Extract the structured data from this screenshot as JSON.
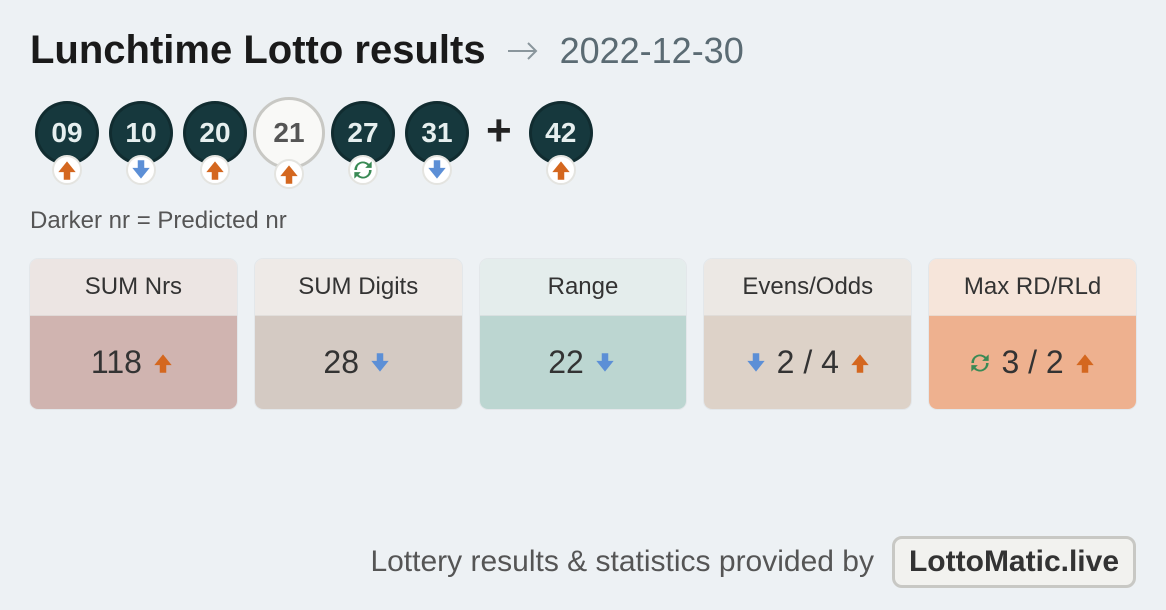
{
  "title": "Lunchtime Lotto results",
  "date": "2022-12-30",
  "legend": "Darker nr = Predicted nr",
  "plus_glyph": "+",
  "colors": {
    "ball_dark_bg": "#16383d",
    "ball_dark_fg": "#e6efef",
    "ball_light_bg": "#f9f9f7",
    "ball_light_fg": "#555555",
    "ball_light_border": "#c8c8c4",
    "up": "#d4671f",
    "down": "#5c8fd6",
    "cycle": "#3a8a55",
    "panel_bg": "#edf1f4"
  },
  "balls": [
    {
      "n": "09",
      "dark": true,
      "ind": "up"
    },
    {
      "n": "10",
      "dark": true,
      "ind": "down"
    },
    {
      "n": "20",
      "dark": true,
      "ind": "up"
    },
    {
      "n": "21",
      "dark": false,
      "ind": "up"
    },
    {
      "n": "27",
      "dark": true,
      "ind": "cycle"
    },
    {
      "n": "31",
      "dark": true,
      "ind": "down"
    }
  ],
  "bonus": {
    "n": "42",
    "dark": true,
    "ind": "up"
  },
  "cards": [
    {
      "label": "SUM Nrs",
      "head_bg": "#ece5e3",
      "body_bg": "#d0b4b0",
      "items": [
        {
          "text": "118"
        },
        {
          "icon": "up"
        }
      ]
    },
    {
      "label": "SUM Digits",
      "head_bg": "#eeeae7",
      "body_bg": "#d4cac3",
      "items": [
        {
          "text": "28"
        },
        {
          "icon": "down"
        }
      ]
    },
    {
      "label": "Range",
      "head_bg": "#e4edec",
      "body_bg": "#bcd6d1",
      "items": [
        {
          "text": "22"
        },
        {
          "icon": "down"
        }
      ]
    },
    {
      "label": "Evens/Odds",
      "head_bg": "#ece8e4",
      "body_bg": "#ddd2c8",
      "items": [
        {
          "icon": "down"
        },
        {
          "text": "2 / 4"
        },
        {
          "icon": "up"
        }
      ]
    },
    {
      "label": "Max RD/RLd",
      "head_bg": "#f6e5da",
      "body_bg": "#eeb18f",
      "items": [
        {
          "icon": "cycle"
        },
        {
          "text": "3 / 2"
        },
        {
          "icon": "up"
        }
      ]
    }
  ],
  "footer": {
    "text": "Lottery results & statistics provided by",
    "badge": "LottoMatic.live"
  },
  "watermark": "LottoMatic.live"
}
